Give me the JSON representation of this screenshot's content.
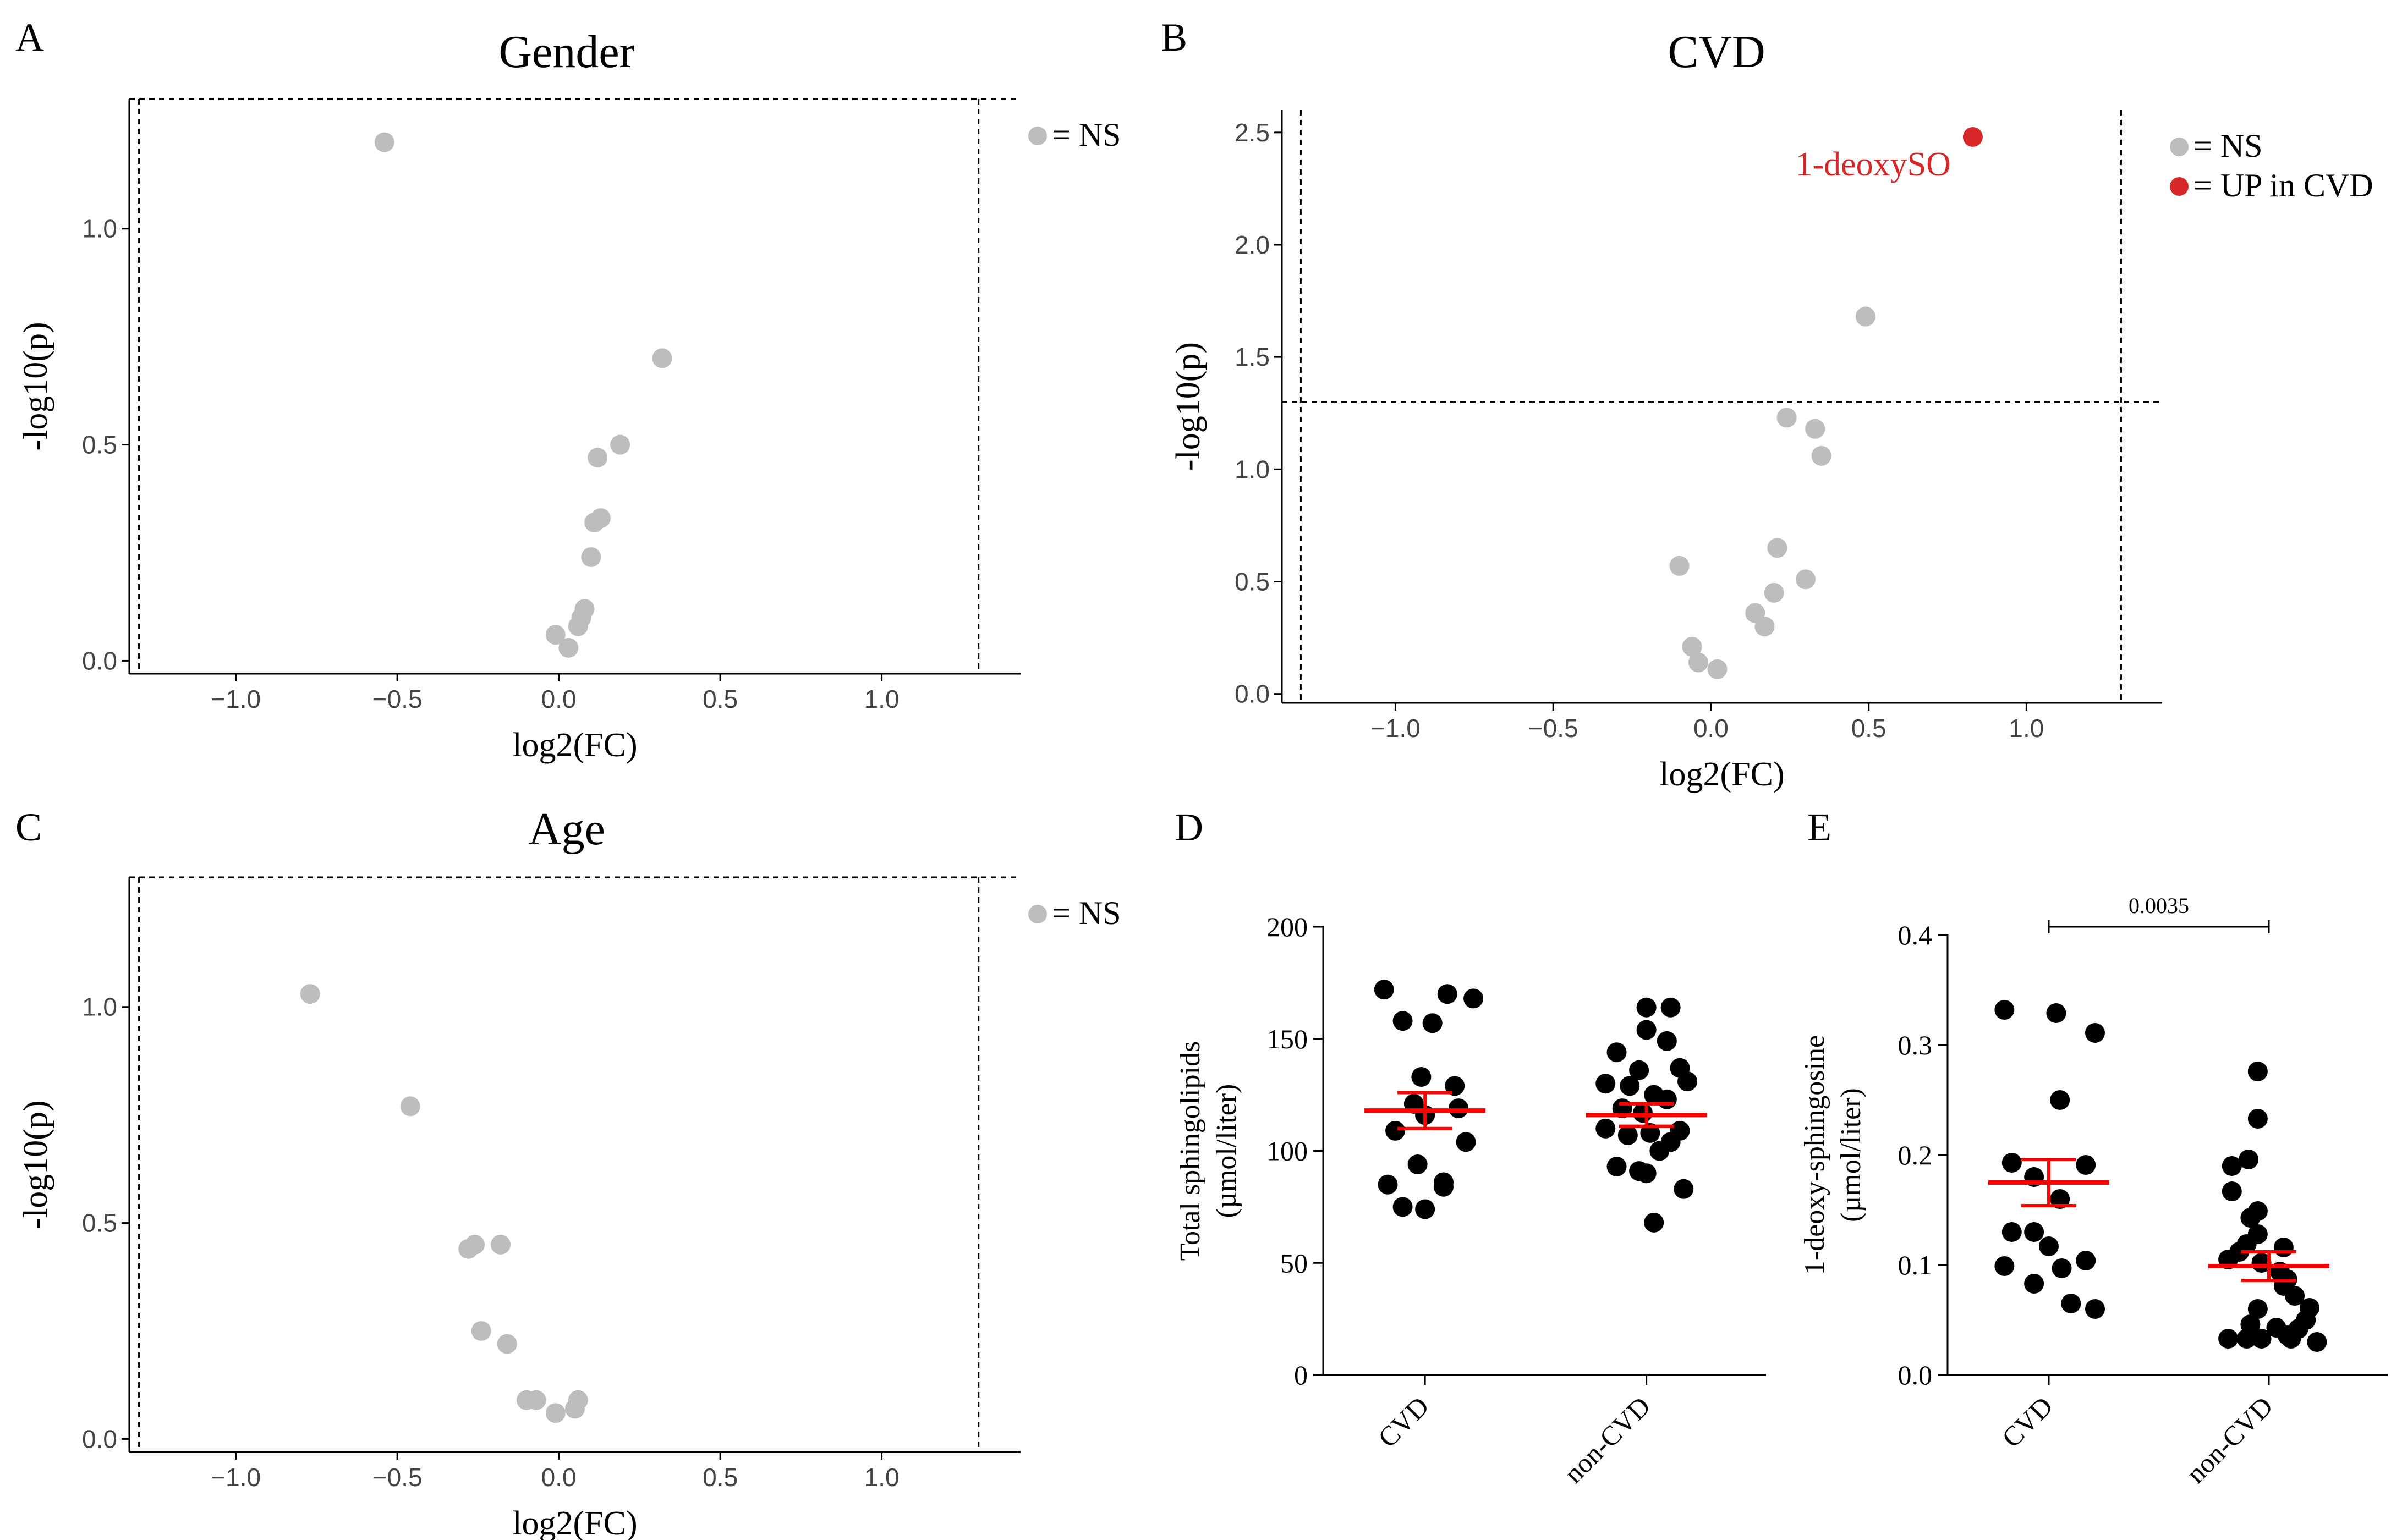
{
  "chart_data": [
    {
      "id": "A",
      "type": "scatter",
      "panel_letter": "A",
      "title": "Gender",
      "xlabel": "log2(FC)",
      "ylabel": "-log10(p)",
      "xlim": [
        -1.33,
        1.43
      ],
      "ylim": [
        -0.03,
        1.3
      ],
      "xticks": [
        -1.0,
        -0.5,
        0.0,
        0.5,
        1.0
      ],
      "xtick_labels": [
        "−1.0",
        "−0.5",
        "0.0",
        "0.5",
        "1.0"
      ],
      "yticks": [
        0.0,
        0.5,
        1.0
      ],
      "ytick_labels": [
        "0.0",
        "0.5",
        "1.0"
      ],
      "thresholds": {
        "vlines": [
          -1.3,
          1.3
        ],
        "hline": 1.3
      },
      "legend": [
        {
          "label": "= NS",
          "color": "#bdbdbd"
        }
      ],
      "series": [
        {
          "name": "NS",
          "color": "#bdbdbd",
          "x": [
            -0.54,
            0.32,
            0.19,
            0.12,
            0.13,
            0.11,
            0.1,
            0.08,
            0.07,
            0.06,
            -0.01,
            0.03
          ],
          "y": [
            1.2,
            0.7,
            0.5,
            0.47,
            0.33,
            0.32,
            0.24,
            0.12,
            0.1,
            0.08,
            0.06,
            0.03
          ]
        }
      ],
      "annotations": []
    },
    {
      "id": "B",
      "type": "scatter",
      "panel_letter": "B",
      "title": "CVD",
      "xlabel": "log2(FC)",
      "ylabel": "-log10(p)",
      "xlim": [
        -1.36,
        1.43
      ],
      "ylim": [
        -0.04,
        2.6
      ],
      "xticks": [
        -1.0,
        -0.5,
        0.0,
        0.5,
        1.0
      ],
      "xtick_labels": [
        "−1.0",
        "−0.5",
        "0.0",
        "0.5",
        "1.0"
      ],
      "yticks": [
        0.0,
        0.5,
        1.0,
        1.5,
        2.0,
        2.5
      ],
      "ytick_labels": [
        "0.0",
        "0.5",
        "1.0",
        "1.5",
        "2.0",
        "2.5"
      ],
      "thresholds": {
        "vlines": [
          -1.3,
          1.3
        ],
        "hline": 1.3
      },
      "legend": [
        {
          "label": "= NS",
          "color": "#bdbdbd"
        },
        {
          "label": "= UP in CVD",
          "color": "#d62728"
        }
      ],
      "series": [
        {
          "name": "NS",
          "color": "#bdbdbd",
          "x": [
            0.49,
            0.24,
            0.33,
            0.35,
            0.21,
            -0.1,
            0.3,
            0.2,
            0.14,
            0.17,
            -0.06,
            -0.04,
            0.02
          ],
          "y": [
            1.68,
            1.23,
            1.18,
            1.06,
            0.65,
            0.57,
            0.51,
            0.45,
            0.36,
            0.3,
            0.21,
            0.14,
            0.11
          ]
        },
        {
          "name": "UP in CVD",
          "color": "#d62728",
          "x": [
            0.83
          ],
          "y": [
            2.48
          ]
        }
      ],
      "annotations": [
        {
          "text": "1-deoxySO",
          "color": "#d62728",
          "x": 0.83,
          "y": 2.48
        }
      ]
    },
    {
      "id": "C",
      "type": "scatter",
      "panel_letter": "C",
      "title": "Age",
      "xlabel": "log2(FC)",
      "ylabel": "-log10(p)",
      "xlim": [
        -1.33,
        1.43
      ],
      "ylim": [
        -0.03,
        1.3
      ],
      "xticks": [
        -1.0,
        -0.5,
        0.0,
        0.5,
        1.0
      ],
      "xtick_labels": [
        "−1.0",
        "−0.5",
        "0.0",
        "0.5",
        "1.0"
      ],
      "yticks": [
        0.0,
        0.5,
        1.0
      ],
      "ytick_labels": [
        "0.0",
        "0.5",
        "1.0"
      ],
      "thresholds": {
        "vlines": [
          -1.3,
          1.3
        ],
        "hline": 1.3
      },
      "legend": [
        {
          "label": "= NS",
          "color": "#bdbdbd"
        }
      ],
      "series": [
        {
          "name": "NS",
          "color": "#bdbdbd",
          "x": [
            -0.77,
            -0.46,
            -0.26,
            -0.28,
            -0.18,
            -0.24,
            -0.16,
            -0.1,
            -0.07,
            0.06,
            0.05,
            -0.01
          ],
          "y": [
            1.03,
            0.77,
            0.45,
            0.44,
            0.45,
            0.25,
            0.22,
            0.09,
            0.09,
            0.09,
            0.07,
            0.06
          ]
        }
      ],
      "annotations": []
    },
    {
      "id": "D",
      "type": "scatter",
      "panel_letter": "D",
      "title": "",
      "xlabel": "",
      "ylabel": "Total sphingolipids",
      "ylabel_line2": "(µmol/liter)",
      "categories": [
        "CVD",
        "non-CVD"
      ],
      "ylim": [
        0,
        200
      ],
      "yticks": [
        0,
        50,
        100,
        150,
        200
      ],
      "ytick_labels": [
        "0",
        "50",
        "100",
        "150",
        "200"
      ],
      "series": [
        {
          "name": "CVD",
          "color": "#000000",
          "jitter": [
            -0.22,
            0.12,
            0.26,
            -0.12,
            0.04,
            -0.02,
            0.16,
            -0.06,
            0.18,
            0.0,
            -0.16,
            0.22,
            -0.04,
            0.1,
            -0.2,
            0.1,
            -0.12,
            0.0
          ],
          "values": [
            172,
            170,
            168,
            158,
            157,
            133,
            129,
            121,
            119,
            116,
            109,
            104,
            94,
            86,
            85,
            84,
            75,
            74
          ],
          "mean": 118,
          "sem": 8
        },
        {
          "name": "non-CVD",
          "color": "#000000",
          "jitter": [
            0.0,
            0.13,
            0.0,
            -0.16,
            0.11,
            -0.04,
            0.18,
            -0.22,
            -0.09,
            0.22,
            0.04,
            0.11,
            -0.13,
            -0.02,
            0.18,
            -0.22,
            0.02,
            -0.1,
            0.13,
            0.07,
            -0.16,
            -0.04,
            0.2,
            0.0,
            0.04
          ],
          "values": [
            164,
            164,
            154,
            144,
            149,
            136,
            137,
            130,
            129,
            131,
            125,
            123,
            119,
            117,
            109,
            110,
            108,
            107,
            104,
            100,
            93,
            91,
            83,
            90,
            68
          ],
          "mean": 116,
          "sem": 5
        }
      ]
    },
    {
      "id": "E",
      "type": "scatter",
      "panel_letter": "E",
      "title": "",
      "xlabel": "",
      "ylabel": "1-deoxy-sphingosine",
      "ylabel_line2": "(µmol/liter)",
      "categories": [
        "CVD",
        "non-CVD"
      ],
      "ylim": [
        0,
        0.4
      ],
      "yticks": [
        0.0,
        0.1,
        0.2,
        0.3,
        0.4
      ],
      "ytick_labels": [
        "0.0",
        "0.1",
        "0.2",
        "0.3",
        "0.4"
      ],
      "significance": {
        "label": "0.0035",
        "groups": [
          "CVD",
          "non-CVD"
        ],
        "y": 0.405
      },
      "series": [
        {
          "name": "CVD",
          "color": "#000000",
          "jitter": [
            -0.24,
            0.04,
            0.25,
            0.06,
            -0.2,
            0.2,
            0.06,
            -0.08,
            -0.2,
            -0.08,
            0.2,
            0.0,
            -0.24,
            0.07,
            -0.08,
            0.25,
            0.12
          ],
          "values": [
            0.332,
            0.329,
            0.311,
            0.25,
            0.193,
            0.191,
            0.16,
            0.18,
            0.13,
            0.13,
            0.104,
            0.117,
            0.099,
            0.097,
            0.083,
            0.06,
            0.065
          ],
          "mean": 0.175,
          "sem": 0.021
        },
        {
          "name": "non-CVD",
          "color": "#000000",
          "jitter": [
            -0.06,
            -0.06,
            -0.11,
            -0.2,
            -0.2,
            -0.06,
            -0.1,
            -0.06,
            -0.12,
            0.08,
            -0.16,
            -0.22,
            -0.04,
            0.06,
            0.1,
            0.08,
            0.14,
            0.22,
            0.2,
            0.16,
            0.1,
            -0.04,
            -0.22,
            -0.12,
            0.26,
            0.12,
            0.04,
            -0.1,
            -0.06
          ],
          "values": [
            0.276,
            0.233,
            0.196,
            0.19,
            0.167,
            0.149,
            0.143,
            0.128,
            0.119,
            0.116,
            0.112,
            0.105,
            0.102,
            0.094,
            0.087,
            0.081,
            0.072,
            0.061,
            0.05,
            0.042,
            0.036,
            0.033,
            0.033,
            0.033,
            0.03,
            0.033,
            0.043,
            0.046,
            0.06
          ],
          "mean": 0.099,
          "sem": 0.013
        }
      ]
    }
  ]
}
